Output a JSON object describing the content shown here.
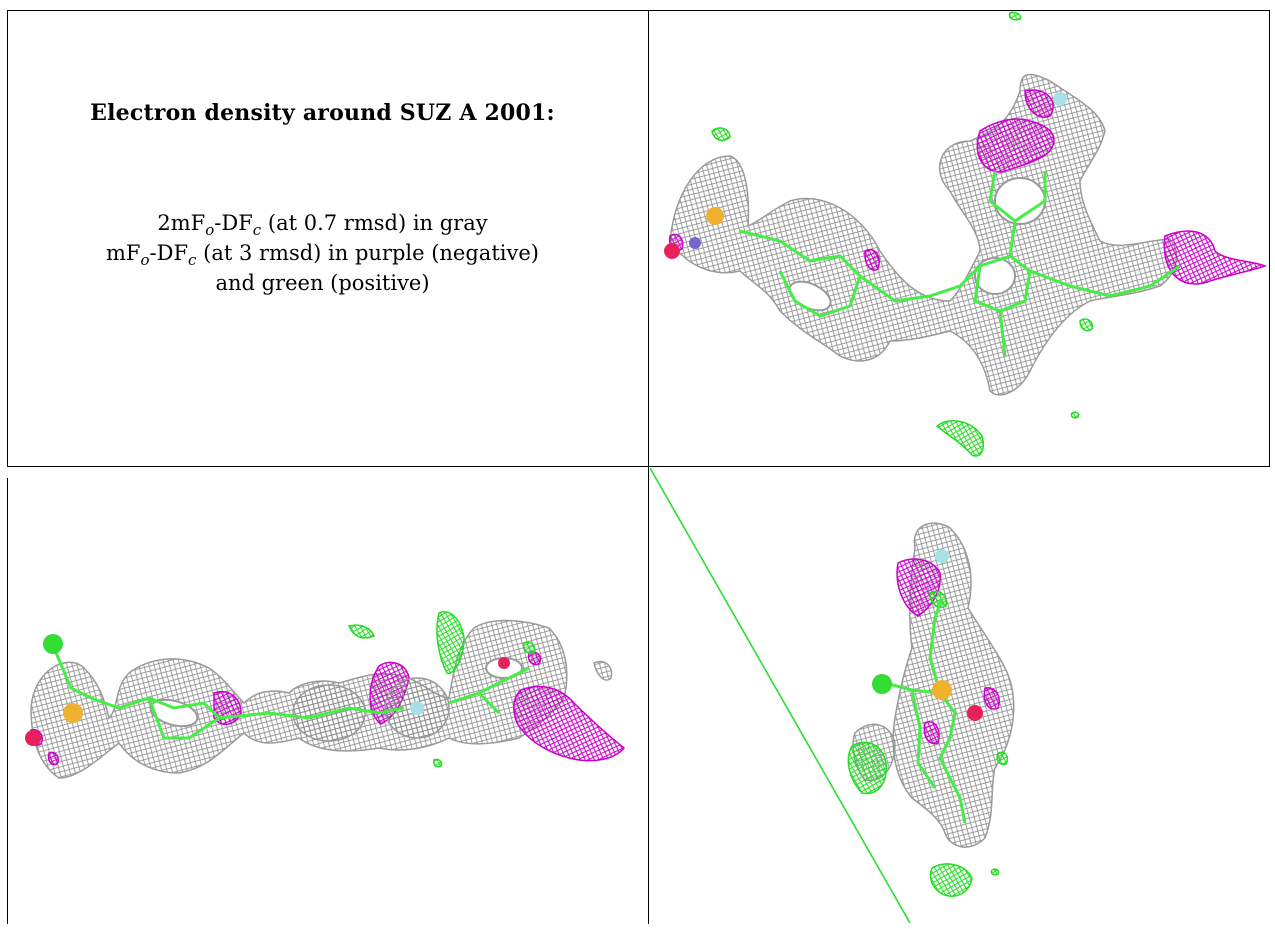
{
  "caption": {
    "title": "Electron density around SUZ A 2001:",
    "line1": {
      "a": "2mF",
      "s1": "o",
      "b": "-DF",
      "s2": "c",
      "c": " (at 0.7 rmsd) in gray"
    },
    "line2": {
      "a": "mF",
      "s1": "o",
      "b": "-DF",
      "s2": "c",
      "c": " (at 3 rmsd) in purple (negative)"
    },
    "line3": "and green (positive)"
  },
  "colors": {
    "density_2fofc": "#9a9a9a",
    "negative_difference": "#cc00cc",
    "positive_difference": "#22dd22",
    "model_bonds": "#44ee44",
    "oxygen": "#e8205a",
    "sulfur": "#f0b030",
    "chlorine": "#33dd33",
    "fluorine": "#a8e0e8"
  },
  "panels": [
    {
      "view": "top-right"
    },
    {
      "view": "bottom-left"
    },
    {
      "view": "bottom-right"
    }
  ]
}
